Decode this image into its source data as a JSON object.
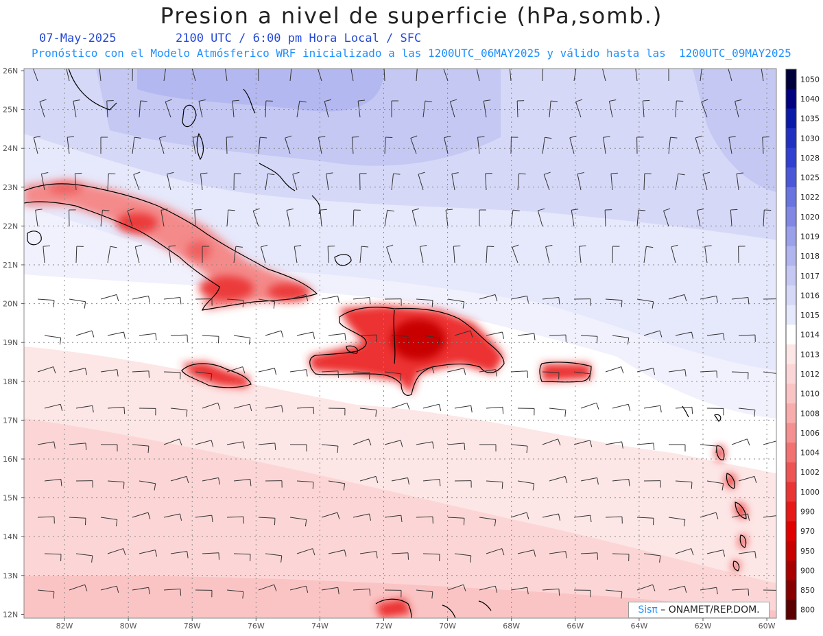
{
  "header": {
    "title": "Presion a nivel de superficie (hPa,somb.)",
    "date": "07-May-2025",
    "time": "2100 UTC / 6:00 pm Hora Local / SFC",
    "model_info": "Pronóstico con el Modelo Atmósferico WRF inicializado a las 1200UTC_06MAY2025 y válido hasta las  1200UTC_09MAY2025"
  },
  "map": {
    "lat_labels": [
      "26N",
      "25N",
      "24N",
      "23N",
      "22N",
      "21N",
      "20N",
      "19N",
      "18N",
      "17N",
      "16N",
      "15N",
      "14N",
      "13N",
      "12N"
    ],
    "lon_labels": [
      "82W",
      "80W",
      "78W",
      "76W",
      "74W",
      "72W",
      "70W",
      "68W",
      "66W",
      "64W",
      "62W",
      "60W"
    ],
    "colors": {
      "coast": "#000000",
      "grid": "#888888",
      "land_core": "#e8000a"
    }
  },
  "colorbar": {
    "levels": [
      "1050",
      "1040",
      "1035",
      "1030",
      "1028",
      "1025",
      "1022",
      "1020",
      "1019",
      "1018",
      "1017",
      "1016",
      "1015",
      "1014",
      "1013",
      "1012",
      "1010",
      "1008",
      "1006",
      "1004",
      "1002",
      "1000",
      "990",
      "970",
      "950",
      "900",
      "850",
      "800"
    ],
    "colors": [
      "#00003a",
      "#000080",
      "#0a1aa8",
      "#2030c0",
      "#3040d0",
      "#4a58d8",
      "#6a74e0",
      "#8088e4",
      "#9aa0ea",
      "#b0b4ef",
      "#c4c8f3",
      "#d6d8f7",
      "#e6e8fb",
      "#ffffff",
      "#fde6e6",
      "#fcd6d6",
      "#fbc4c4",
      "#f8acac",
      "#f59090",
      "#f27272",
      "#ee5454",
      "#ea3434",
      "#e61818",
      "#e00000",
      "#c80000",
      "#a80000",
      "#860000",
      "#5a0000"
    ]
  },
  "credit": {
    "brand": "Sisπ",
    "org": " – ONAMET/REP.DOM."
  }
}
